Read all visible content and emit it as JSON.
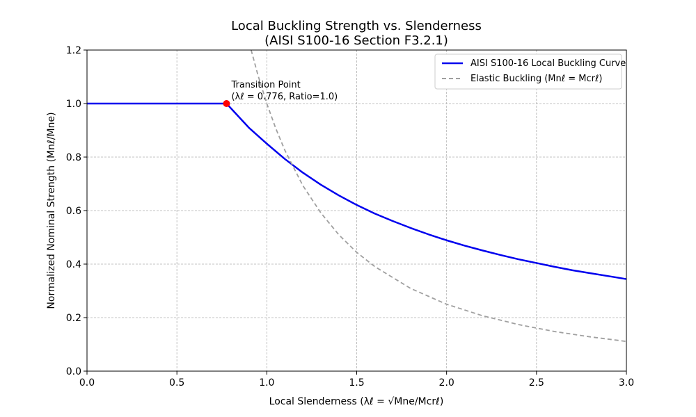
{
  "chart_data": {
    "type": "line",
    "title": "Local Buckling Strength vs. Slenderness",
    "subtitle": "(AISI S100-16 Section F3.2.1)",
    "xlabel": "Local Slenderness (λℓ = √Mne/Mcrℓ)",
    "ylabel": "Normalized Nominal Strength (Mnℓ/Mne)",
    "xlim": [
      0.0,
      3.0
    ],
    "ylim": [
      0.0,
      1.2
    ],
    "xticks": [
      0.0,
      0.5,
      1.0,
      1.5,
      2.0,
      2.5,
      3.0
    ],
    "xtick_labels": [
      "0.0",
      "0.5",
      "1.0",
      "1.5",
      "2.0",
      "2.5",
      "3.0"
    ],
    "yticks": [
      0.0,
      0.2,
      0.4,
      0.6,
      0.8,
      1.0,
      1.2
    ],
    "ytick_labels": [
      "0.0",
      "0.2",
      "0.4",
      "0.6",
      "0.8",
      "1.0",
      "1.2"
    ],
    "grid": true,
    "legend_position": "top-right",
    "series": [
      {
        "name": "AISI S100-16 Local Buckling Curve",
        "color": "#0000ee",
        "style": "solid",
        "x": [
          0.0,
          0.2,
          0.4,
          0.6,
          0.776,
          0.9,
          1.0,
          1.1,
          1.2,
          1.3,
          1.4,
          1.5,
          1.6,
          1.7,
          1.8,
          1.9,
          2.0,
          2.1,
          2.2,
          2.3,
          2.4,
          2.5,
          2.6,
          2.7,
          2.8,
          2.9,
          3.0
        ],
        "y": [
          1.0,
          1.0,
          1.0,
          1.0,
          1.0,
          0.91,
          0.85,
          0.793,
          0.742,
          0.697,
          0.657,
          0.621,
          0.589,
          0.561,
          0.535,
          0.511,
          0.489,
          0.469,
          0.451,
          0.434,
          0.418,
          0.404,
          0.39,
          0.377,
          0.366,
          0.355,
          0.344
        ]
      },
      {
        "name": "Elastic Buckling (Mnℓ = Mcrℓ)",
        "color": "#a0a0a0",
        "style": "dashed",
        "x": [
          0.913,
          0.95,
          1.0,
          1.05,
          1.1,
          1.2,
          1.3,
          1.4,
          1.5,
          1.6,
          1.8,
          2.0,
          2.2,
          2.4,
          2.6,
          2.8,
          3.0
        ],
        "y": [
          1.2,
          1.108,
          1.0,
          0.907,
          0.826,
          0.694,
          0.592,
          0.51,
          0.444,
          0.391,
          0.309,
          0.25,
          0.207,
          0.174,
          0.148,
          0.128,
          0.111
        ]
      }
    ],
    "annotations": [
      {
        "text_line1": "Transition Point",
        "text_line2": "(λℓ = 0.776, Ratio=1.0)",
        "x": 0.776,
        "y": 1.0,
        "marker_color": "#ff0000"
      }
    ]
  }
}
